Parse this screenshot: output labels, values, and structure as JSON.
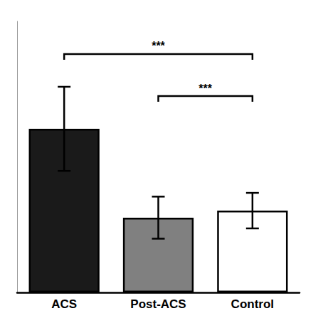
{
  "chart_data": {
    "type": "bar",
    "categories": [
      "ACS",
      "Post-ACS",
      "Control"
    ],
    "values": [
      3.5,
      1.6,
      1.75
    ],
    "errors": [
      0.9,
      0.45,
      0.38
    ],
    "colors": [
      "#1a1a1a",
      "#808080",
      "#ffffff"
    ],
    "ylim": [
      0,
      5.8
    ],
    "grid": false,
    "tick_labels": "x",
    "annotations": [
      {
        "type": "bracket",
        "from": "ACS",
        "to": "Control",
        "y": 5.1,
        "label": "***"
      },
      {
        "type": "bracket",
        "from": "Post-ACS",
        "to": "Control",
        "y": 4.2,
        "label": "***"
      }
    ]
  }
}
